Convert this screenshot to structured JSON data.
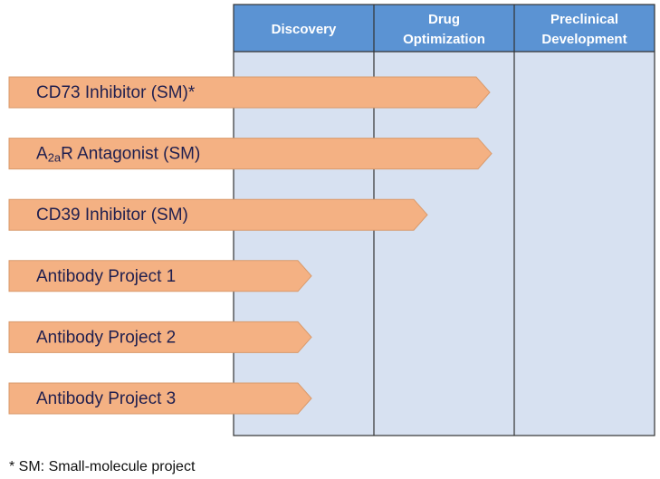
{
  "stages": [
    "Discovery",
    "Drug\nOptimization",
    "Preclinical\nDevelopment"
  ],
  "programs": [
    {
      "label": "CD73 Inhibitor (SM)*"
    },
    {
      "label": "A",
      "subscript": "2a",
      "label_rest": "R Antagonist (SM)"
    },
    {
      "label": "CD39 Inhibitor (SM)"
    },
    {
      "label": "Antibody Project 1"
    },
    {
      "label": "Antibody Project 2"
    },
    {
      "label": "Antibody Project 3"
    }
  ],
  "footnote": "* SM: Small-molecule project"
}
